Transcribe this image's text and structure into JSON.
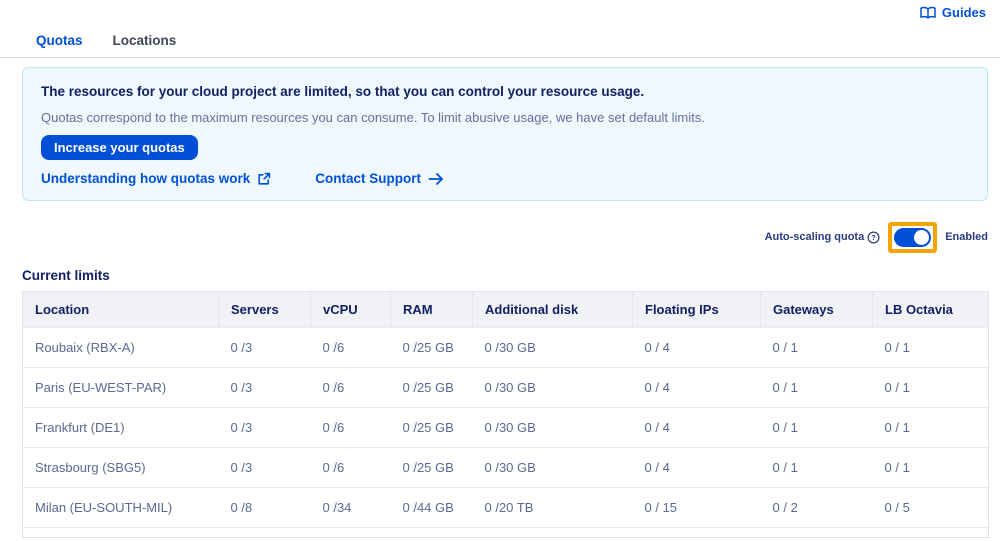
{
  "header": {
    "guides_label": "Guides"
  },
  "tabs": [
    {
      "label": "Quotas",
      "active": true
    },
    {
      "label": "Locations",
      "active": false
    }
  ],
  "banner": {
    "title": "The resources for your cloud project are limited, so that you can control your resource usage.",
    "subtitle": "Quotas correspond to the maximum resources you can consume. To limit abusive usage, we have set default limits.",
    "button_label": "Increase your quotas",
    "link_quotas_label": "Understanding how quotas work",
    "link_support_label": "Contact Support"
  },
  "autoscaling": {
    "label": "Auto-scaling quota",
    "toggle_state": "on",
    "status": "Enabled"
  },
  "section_title": "Current limits",
  "table": {
    "columns": [
      "Location",
      "Servers",
      "vCPU",
      "RAM",
      "Additional disk",
      "Floating IPs",
      "Gateways",
      "LB Octavia"
    ],
    "rows": [
      [
        "Roubaix (RBX-A)",
        "0 /3",
        "0 /6",
        "0 /25 GB",
        "0 /30 GB",
        "0 / 4",
        "0 / 1",
        "0 / 1"
      ],
      [
        "Paris (EU-WEST-PAR)",
        "0 /3",
        "0 /6",
        "0 /25 GB",
        "0 /30 GB",
        "0 / 4",
        "0 / 1",
        "0 / 1"
      ],
      [
        "Frankfurt (DE1)",
        "0 /3",
        "0 /6",
        "0 /25 GB",
        "0 /30 GB",
        "0 / 4",
        "0 / 1",
        "0 / 1"
      ],
      [
        "Strasbourg (SBG5)",
        "0 /3",
        "0 /6",
        "0 /25 GB",
        "0 /30 GB",
        "0 / 4",
        "0 / 1",
        "0 / 1"
      ],
      [
        "Milan (EU-SOUTH-MIL)",
        "0 /8",
        "0 /34",
        "0 /44 GB",
        "0 /20 TB",
        "0 / 15",
        "0 / 2",
        "0 / 5"
      ]
    ]
  },
  "icons": {
    "guides": "book-icon",
    "external_link": "external-link-icon",
    "contact_arrow": "arrow-right-icon",
    "help": "question-circle-icon"
  },
  "colors": {
    "accent": "#0050d7",
    "navy": "#122064",
    "highlight_orange": "#f5a300",
    "banner_bg": "#eff8fd"
  }
}
